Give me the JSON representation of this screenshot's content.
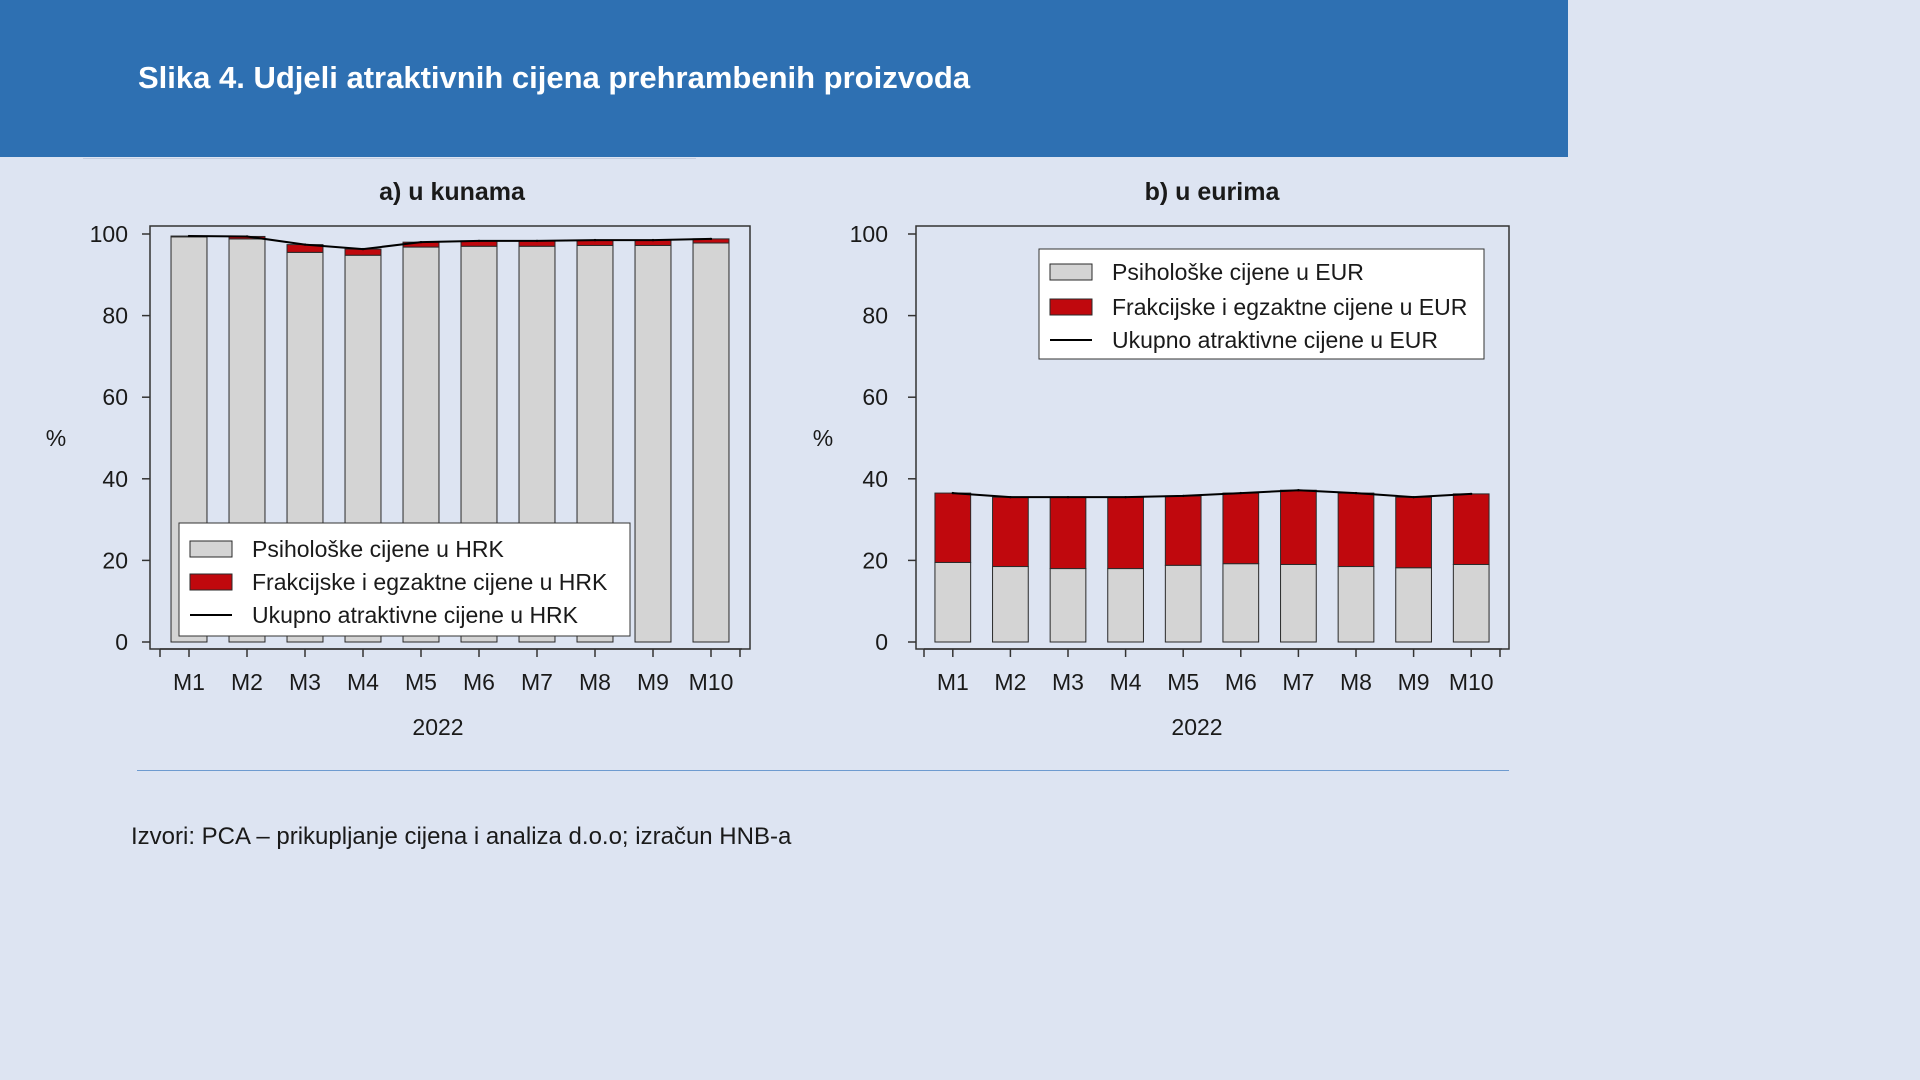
{
  "header": {
    "title": "Slika 4. Udjeli atraktivnih cijena prehrambenih proizvoda"
  },
  "footer": {
    "source": "Izvori: PCA – prikupljanje cijena i analiza d.o.o; izračun HNB-a"
  },
  "colors": {
    "header_bg": "#2e70b2",
    "page_bg": "#dde4f2",
    "psych_bar": "#d4d4d4",
    "frac_bar": "#c0080d",
    "total_line": "#000000"
  },
  "chart_data": [
    {
      "type": "bar",
      "stacked": true,
      "title": "a) u kunama",
      "ylabel": "%",
      "xlabel": "2022",
      "ylim": [
        0,
        100
      ],
      "yticks": [
        "0",
        "20",
        "40",
        "60",
        "80",
        "100"
      ],
      "categories": [
        "M1",
        "M2",
        "M3",
        "M4",
        "M5",
        "M6",
        "M7",
        "M8",
        "M9",
        "M10"
      ],
      "series": [
        {
          "name": "Psihološke cijene u HRK",
          "kind": "bar",
          "color": "#d4d4d4",
          "values": [
            99.3,
            98.8,
            95.5,
            94.8,
            96.8,
            97.0,
            97.0,
            97.2,
            97.2,
            97.8
          ]
        },
        {
          "name": "Frakcijske i egzaktne cijene u HRK",
          "kind": "bar",
          "color": "#c0080d",
          "values": [
            0.2,
            0.6,
            1.9,
            1.5,
            1.2,
            1.3,
            1.3,
            1.3,
            1.3,
            1.0
          ]
        },
        {
          "name": "Ukupno atraktivne cijene u HRK",
          "kind": "line",
          "color": "#000000",
          "values": [
            99.5,
            99.4,
            97.4,
            96.3,
            98.0,
            98.3,
            98.3,
            98.5,
            98.5,
            98.8
          ]
        }
      ],
      "legend": "bottom-left"
    },
    {
      "type": "bar",
      "stacked": true,
      "title": "b) u eurima",
      "ylabel": "%",
      "xlabel": "2022",
      "ylim": [
        0,
        100
      ],
      "yticks": [
        "0",
        "20",
        "40",
        "60",
        "80",
        "100"
      ],
      "categories": [
        "M1",
        "M2",
        "M3",
        "M4",
        "M5",
        "M6",
        "M7",
        "M8",
        "M9",
        "M10"
      ],
      "series": [
        {
          "name": "Psihološke cijene u EUR",
          "kind": "bar",
          "color": "#d4d4d4",
          "values": [
            19.5,
            18.5,
            18.0,
            18.0,
            18.8,
            19.2,
            19.0,
            18.5,
            18.2,
            19.0
          ]
        },
        {
          "name": "Frakcijske i egzaktne cijene u EUR",
          "kind": "bar",
          "color": "#c0080d",
          "values": [
            17.0,
            17.0,
            17.5,
            17.5,
            17.0,
            17.3,
            18.2,
            18.0,
            17.3,
            17.3
          ]
        },
        {
          "name": "Ukupno atraktivne cijene u EUR",
          "kind": "line",
          "color": "#000000",
          "values": [
            36.5,
            35.5,
            35.5,
            35.5,
            35.8,
            36.5,
            37.2,
            36.5,
            35.5,
            36.3
          ]
        }
      ],
      "legend": "top-right"
    }
  ]
}
